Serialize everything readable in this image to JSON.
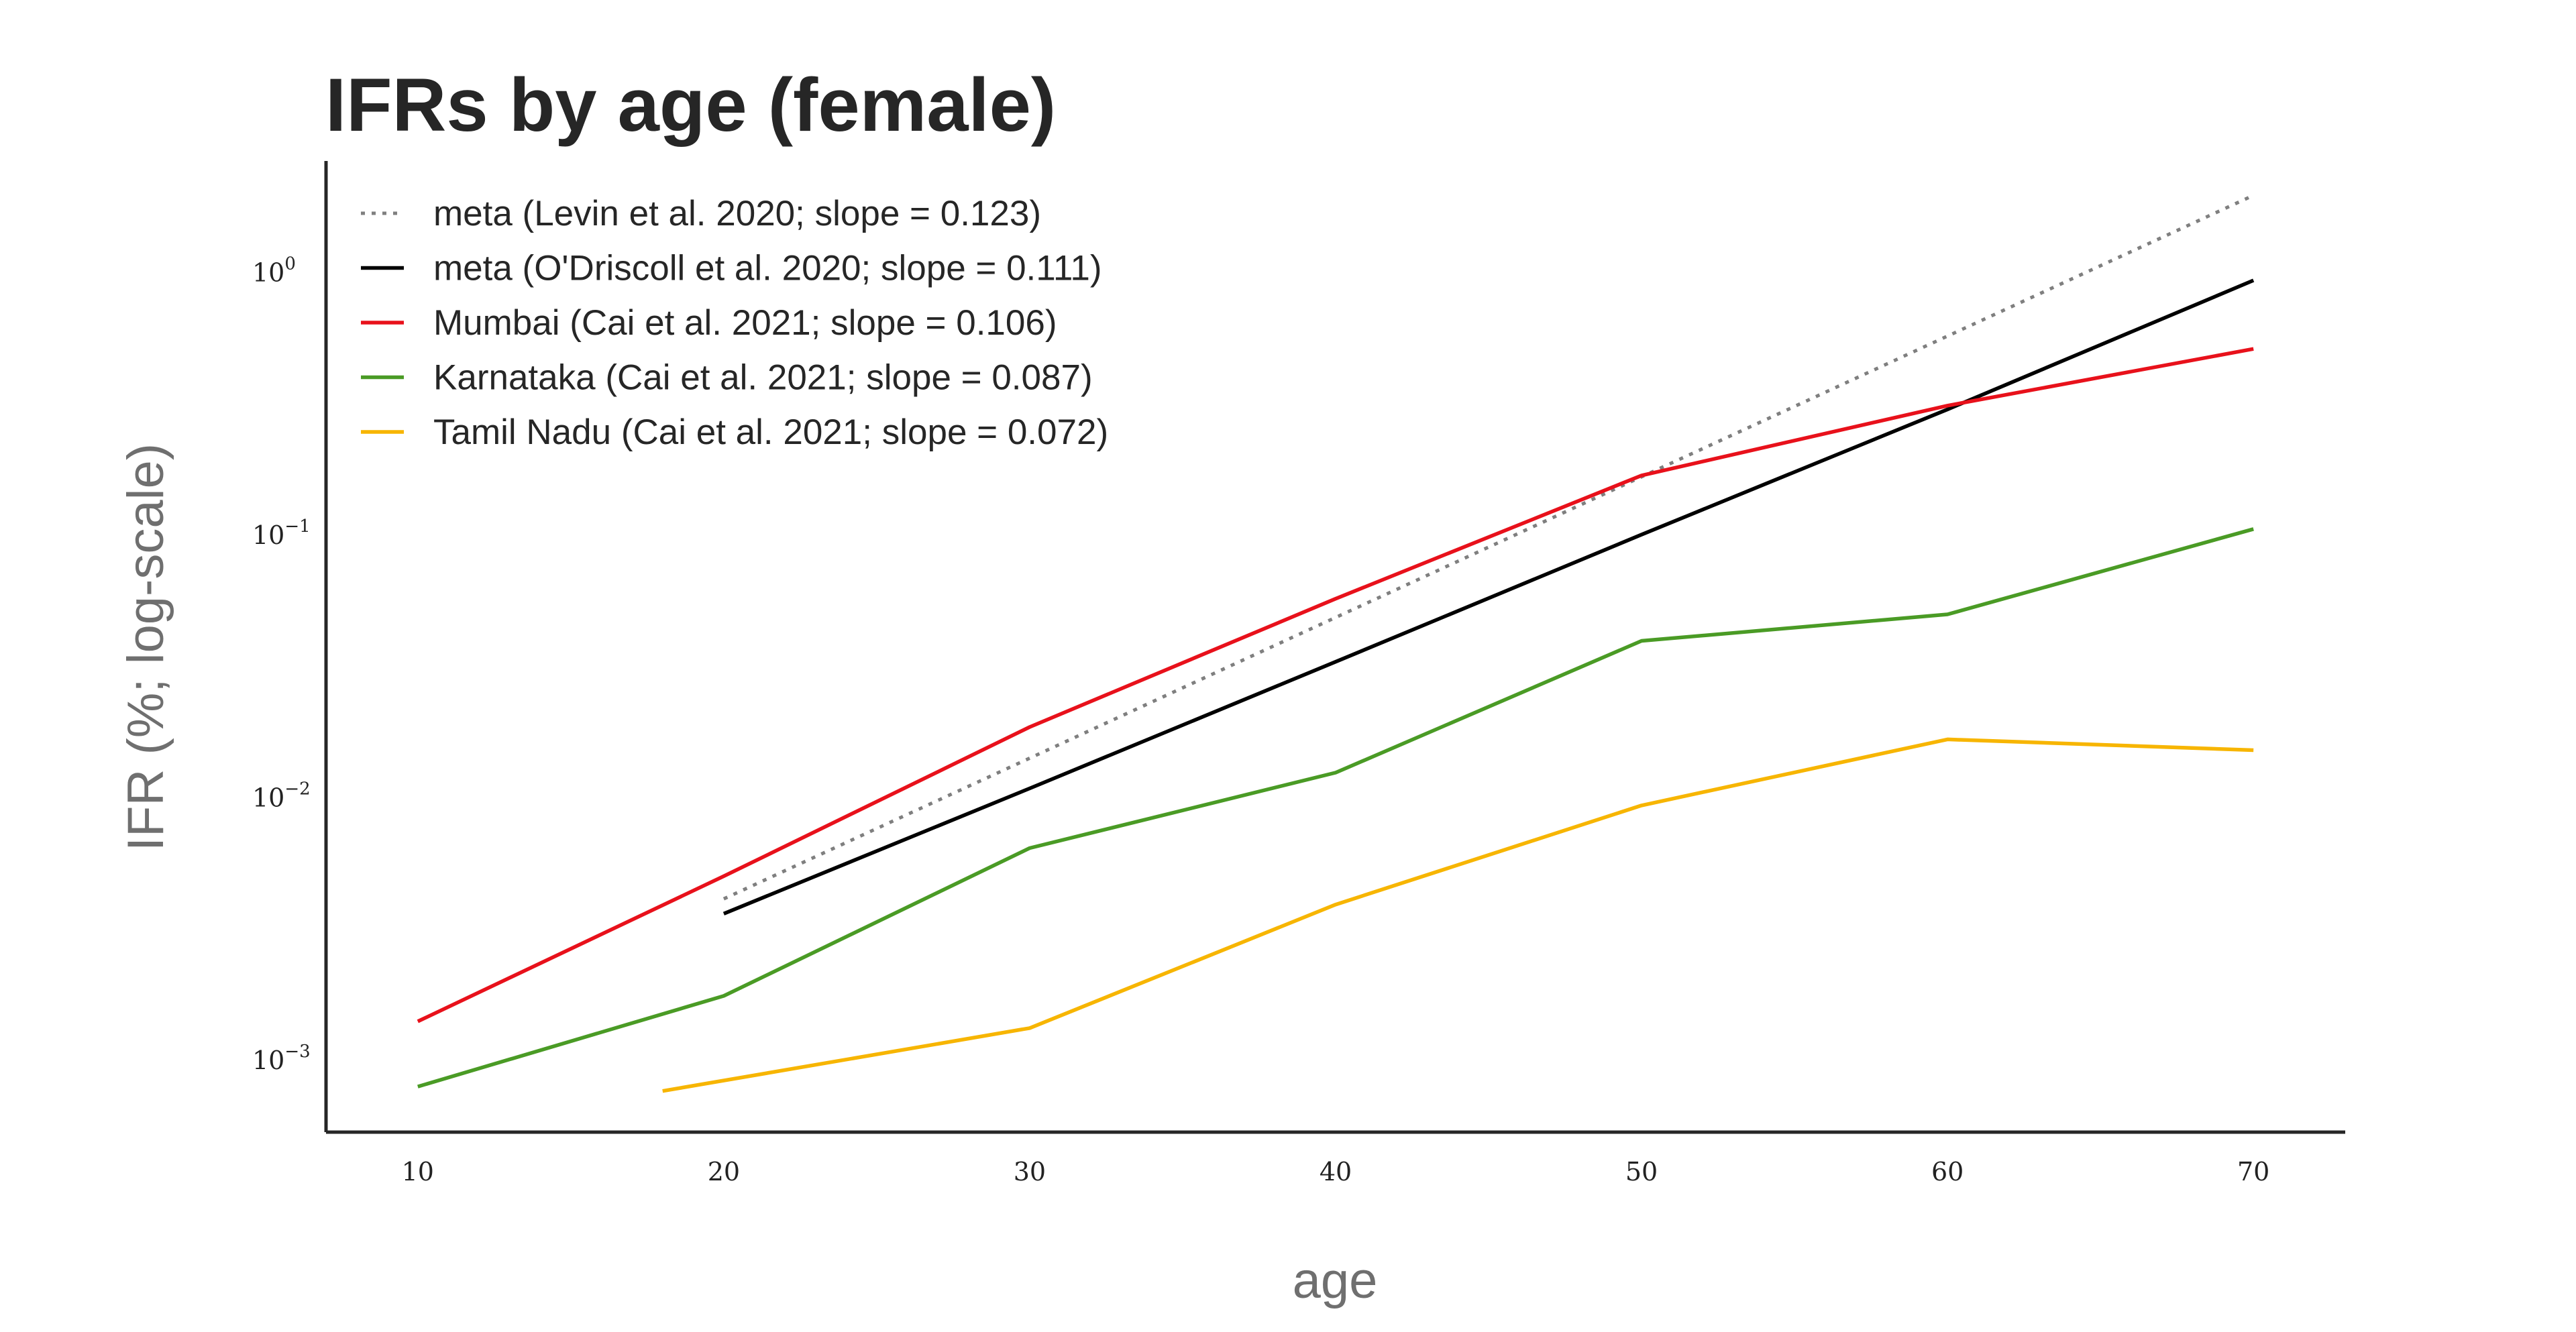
{
  "chart_data": {
    "type": "line",
    "title": "IFRs by age (female)",
    "xlabel": "age",
    "ylabel": "IFR (%; log-scale)",
    "x_ticks": [
      10,
      20,
      30,
      40,
      50,
      60,
      70
    ],
    "y_ticks": [
      {
        "value": 0.001,
        "base": "10",
        "exp": "−3"
      },
      {
        "value": 0.01,
        "base": "10",
        "exp": "−2"
      },
      {
        "value": 0.1,
        "base": "10",
        "exp": "−1"
      },
      {
        "value": 1,
        "base": "10",
        "exp": "0"
      }
    ],
    "xlim": [
      7,
      73
    ],
    "ylim": [
      0.00053,
      2.65
    ],
    "y_scale": "log",
    "grid": false,
    "legend_position": "top-left",
    "series": [
      {
        "name": "meta (Levin et al. 2020; slope = 0.123)",
        "color": "#7f7f7f",
        "dashed": true,
        "x": [
          20,
          70
        ],
        "y": [
          0.0041,
          1.96
        ]
      },
      {
        "name": "meta (O'Driscoll et al. 2020; slope = 0.111)",
        "color": "#000000",
        "dashed": false,
        "x": [
          20,
          30,
          40,
          50,
          60,
          70
        ],
        "y": [
          0.0036,
          0.0108,
          0.0328,
          0.1,
          0.3,
          0.93
        ]
      },
      {
        "name": "Mumbai (Cai et al. 2021; slope = 0.106)",
        "color": "#e8111b",
        "dashed": false,
        "x": [
          10,
          20,
          30,
          40,
          50,
          60,
          70
        ],
        "y": [
          0.0014,
          0.005,
          0.0185,
          0.057,
          0.168,
          0.31,
          0.51
        ]
      },
      {
        "name": "Karnataka (Cai et al. 2021; slope = 0.087)",
        "color": "#4a9b25",
        "dashed": false,
        "x": [
          10,
          20,
          30,
          40,
          50,
          60,
          70
        ],
        "y": [
          0.00079,
          0.00175,
          0.0064,
          0.0124,
          0.0394,
          0.0497,
          0.105
        ]
      },
      {
        "name": "Tamil Nadu (Cai et al. 2021; slope = 0.072)",
        "color": "#f7b500",
        "dashed": false,
        "x": [
          18,
          30,
          40,
          50,
          60,
          70
        ],
        "y": [
          0.00076,
          0.00132,
          0.0039,
          0.0093,
          0.0166,
          0.0151
        ]
      }
    ]
  }
}
